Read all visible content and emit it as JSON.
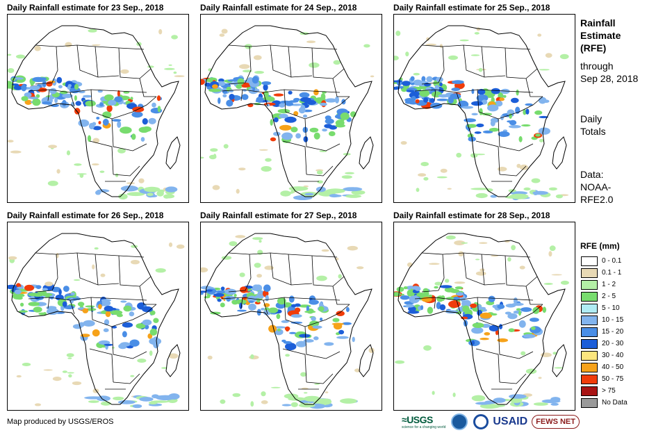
{
  "panels": [
    {
      "title": "Daily Rainfall estimate for 23 Sep., 2018"
    },
    {
      "title": "Daily Rainfall estimate for 24 Sep., 2018"
    },
    {
      "title": "Daily Rainfall estimate for 25 Sep., 2018"
    },
    {
      "title": "Daily Rainfall estimate for 26 Sep., 2018"
    },
    {
      "title": "Daily Rainfall estimate for 27 Sep., 2018"
    },
    {
      "title": "Daily Rainfall estimate for 28 Sep., 2018"
    }
  ],
  "side": {
    "title_line1": "Rainfall",
    "title_line2": "Estimate",
    "title_line3": "(RFE)",
    "through_line1": "through",
    "through_line2": "Sep 28, 2018",
    "daily_line1": "Daily",
    "daily_line2": "Totals",
    "data_line1": "Data:",
    "data_line2": "NOAA-",
    "data_line3": "RFE2.0"
  },
  "legend": {
    "title": "RFE (mm)",
    "items": [
      {
        "label": "0 - 0.1",
        "color": "#ffffff"
      },
      {
        "label": "0.1 - 1",
        "color": "#e8d9b5"
      },
      {
        "label": "1 - 2",
        "color": "#b4f0a6"
      },
      {
        "label": "2 - 5",
        "color": "#78dc6e"
      },
      {
        "label": "5 - 10",
        "color": "#b0ecf4"
      },
      {
        "label": "10 - 15",
        "color": "#82b4ee"
      },
      {
        "label": "15 - 20",
        "color": "#4a8ee6"
      },
      {
        "label": "20 - 30",
        "color": "#1c5ed8"
      },
      {
        "label": "30 - 40",
        "color": "#fce67e"
      },
      {
        "label": "40 - 50",
        "color": "#f6a21a"
      },
      {
        "label": "50 - 75",
        "color": "#f03c0a"
      },
      {
        "label": "> 75",
        "color": "#a81414"
      },
      {
        "label": "No Data",
        "color": "#9a9a9a"
      }
    ]
  },
  "credit": "Map produced by USGS/EROS",
  "logos": {
    "usgs": "USGS",
    "usgs_tagline": "science for a changing world",
    "usaid": "USAID",
    "fews": "FEWS NET"
  }
}
